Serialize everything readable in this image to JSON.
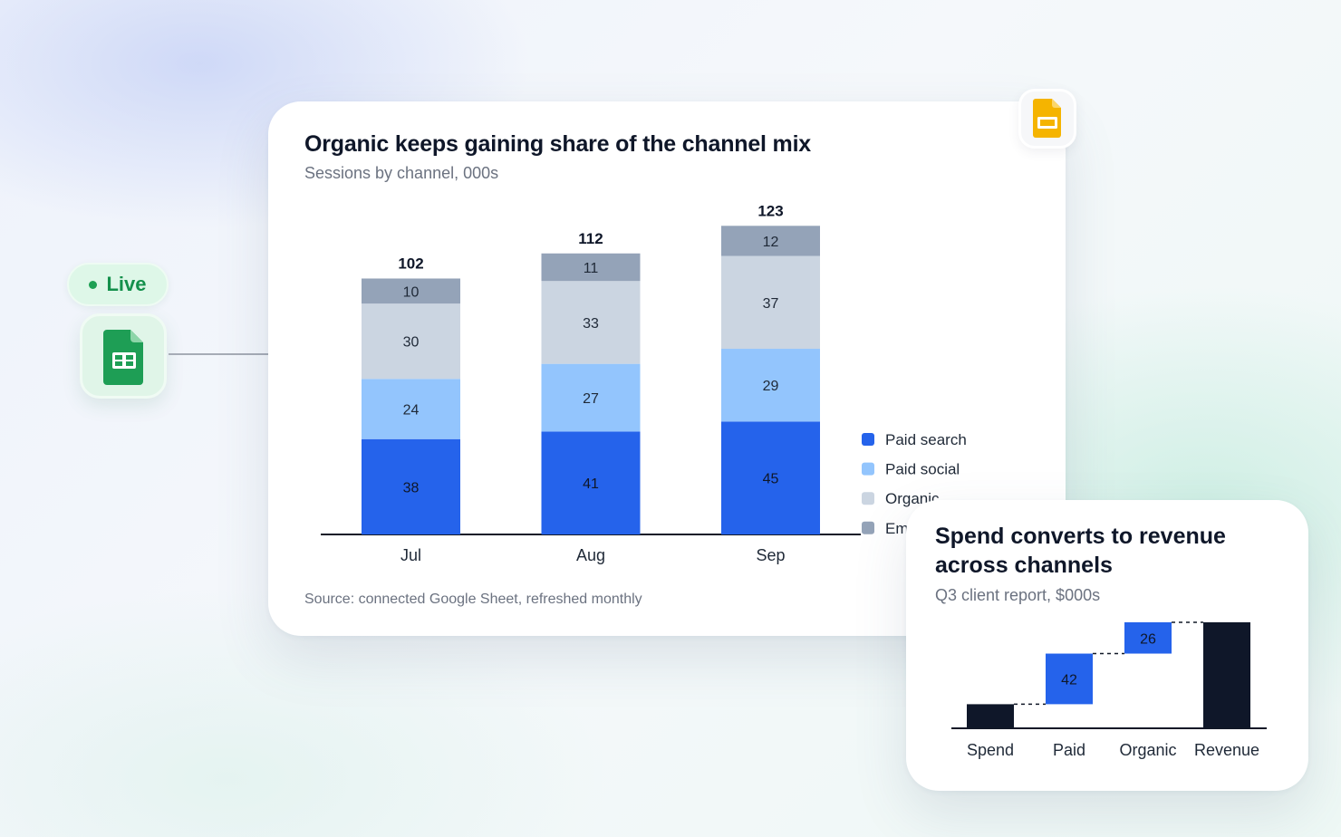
{
  "badge": {
    "label": "Live"
  },
  "icons": {
    "source": "google-sheets-icon",
    "destination": "google-slides-icon"
  },
  "main_chart": {
    "title": "Organic keeps gaining share of the channel mix",
    "subtitle": "Sessions by channel, 000s",
    "source_note": "Source: connected Google Sheet, refreshed monthly"
  },
  "waterfall": {
    "title": "Spend converts to revenue across channels",
    "subtitle": "Q3 client report, $000s"
  },
  "colors": {
    "paid_search": "#2563eb",
    "paid_social": "#93c5fd",
    "organic": "#cbd5e1",
    "email": "#94a3b8",
    "total": "#0f1729",
    "axis": "#111827"
  },
  "chart_data": [
    {
      "type": "bar",
      "stacked": true,
      "title": "Organic keeps gaining share of the channel mix",
      "subtitle": "Sessions by channel, 000s",
      "categories": [
        "Jul",
        "Aug",
        "Sep"
      ],
      "series": [
        {
          "name": "Paid search",
          "color": "#2563eb",
          "values": [
            38,
            41,
            45
          ]
        },
        {
          "name": "Paid social",
          "color": "#93c5fd",
          "values": [
            24,
            27,
            29
          ]
        },
        {
          "name": "Organic",
          "color": "#cbd5e1",
          "values": [
            30,
            33,
            37
          ]
        },
        {
          "name": "Email",
          "color": "#94a3b8",
          "values": [
            10,
            11,
            12
          ]
        }
      ],
      "totals": [
        102,
        112,
        123
      ],
      "legend": "right",
      "grid": false
    },
    {
      "type": "waterfall",
      "title": "Spend converts to revenue across channels",
      "subtitle": "Q3 client report, $000s",
      "categories": [
        "Spend",
        "Paid",
        "Organic",
        "Revenue"
      ],
      "steps": [
        {
          "label": "Spend",
          "kind": "total",
          "value": 20
        },
        {
          "label": "Paid",
          "kind": "delta",
          "value": 42
        },
        {
          "label": "Organic",
          "kind": "delta",
          "value": 26
        },
        {
          "label": "Revenue",
          "kind": "total",
          "value": 88
        }
      ],
      "data_labels": [
        "",
        "42",
        "26",
        ""
      ],
      "grid": false
    }
  ]
}
